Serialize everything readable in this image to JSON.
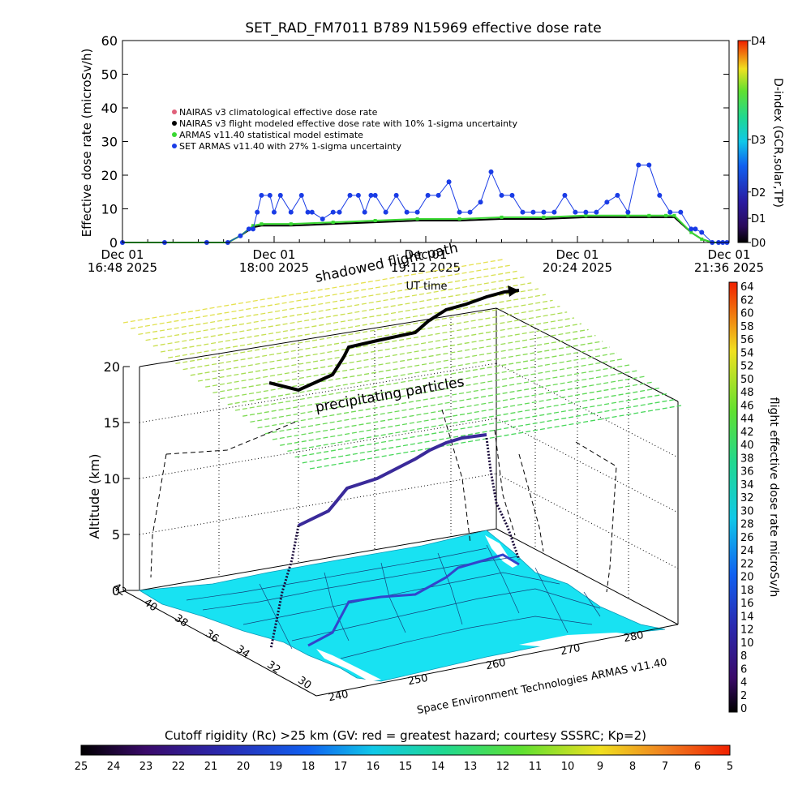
{
  "top_chart": {
    "title": "SET_RAD_FM7011   B789 N15969 effective dose rate",
    "ylabel": "Effective dose rate (microSv/h)",
    "ylim": [
      0,
      60
    ],
    "yticks": [
      "0",
      "10",
      "20",
      "30",
      "40",
      "50",
      "60"
    ],
    "xtick_labels": [
      {
        "line1": "Dec 01",
        "line2": "16:48 2025"
      },
      {
        "line1": "Dec 01",
        "line2": "18:00 2025"
      },
      {
        "line1": "Dec 01",
        "line2": "19:12 2025"
      },
      {
        "line1": "Dec 01",
        "line2": "20:24 2025"
      },
      {
        "line1": "Dec 01",
        "line2": "21:36 2025"
      }
    ],
    "xlabel": "UT time",
    "legend": [
      {
        "label": "NAIRAS v3 climatological effective dose rate",
        "color": "#e0607a"
      },
      {
        "label": "NAIRAS v3 flight modeled effective dose rate with 10% 1-sigma uncertainty",
        "color": "#000000"
      },
      {
        "label": "ARMAS v11.40 statistical model estimate",
        "color": "#39d832"
      },
      {
        "label": "SET ARMAS v11.40 with 27% 1-sigma uncertainty",
        "color": "#1a3ce6"
      }
    ],
    "dindex_label": "D-index (GCR,solar,TP)",
    "dindex_ticks": [
      "D4",
      "D3",
      "D2",
      "D1",
      "D0"
    ]
  },
  "chart_data": {
    "type": "line",
    "title": "SET_RAD_FM7011   B789 N15969 effective dose rate",
    "xlabel": "UT time",
    "ylabel": "Effective dose rate (microSv/h)",
    "x_units": "minutes since Dec 01 16:48 2025",
    "xlim": [
      0,
      288
    ],
    "ylim": [
      0,
      60
    ],
    "series": [
      {
        "name": "SET ARMAS v11.40 with 27% 1-sigma uncertainty",
        "color": "#1a3ce6",
        "x": [
          0,
          20,
          40,
          50,
          56,
          60,
          62,
          64,
          66,
          70,
          72,
          75,
          80,
          85,
          88,
          90,
          95,
          100,
          103,
          108,
          112,
          115,
          118,
          120,
          125,
          130,
          135,
          140,
          145,
          150,
          155,
          160,
          165,
          170,
          175,
          180,
          185,
          190,
          195,
          200,
          205,
          210,
          215,
          220,
          225,
          230,
          235,
          240,
          245,
          250,
          255,
          260,
          265,
          270,
          272,
          275,
          280,
          283,
          285,
          287
        ],
        "y": [
          0,
          0,
          0,
          0,
          2,
          4,
          4,
          9,
          14,
          14,
          9,
          14,
          9,
          14,
          9,
          9,
          7,
          9,
          9,
          14,
          14,
          9,
          14,
          14,
          9,
          14,
          9,
          9,
          14,
          14,
          18,
          9,
          9,
          12,
          21,
          14,
          14,
          9,
          9,
          9,
          9,
          14,
          9,
          9,
          9,
          12,
          14,
          9,
          23,
          23,
          14,
          9,
          9,
          4,
          4,
          3,
          0,
          0,
          0,
          0
        ]
      },
      {
        "name": "ARMAS v11.40 statistical model estimate",
        "color": "#39d832",
        "x": [
          0,
          40,
          50,
          56,
          62,
          66,
          80,
          100,
          120,
          140,
          160,
          180,
          200,
          220,
          240,
          250,
          258,
          262,
          270,
          275,
          280,
          287
        ],
        "y": [
          0,
          0,
          0,
          2,
          5,
          5.5,
          5.5,
          6,
          6.5,
          7,
          7,
          7.5,
          7.5,
          8,
          8,
          8,
          8,
          8,
          3,
          1,
          0,
          0
        ]
      },
      {
        "name": "NAIRAS v3 flight modeled effective dose rate with 10% 1-sigma uncertainty",
        "color": "#000000",
        "x": [
          0,
          40,
          50,
          56,
          62,
          66,
          80,
          100,
          120,
          140,
          160,
          180,
          200,
          220,
          240,
          250,
          258,
          262,
          270,
          275,
          280,
          287
        ],
        "y": [
          0,
          0,
          0,
          2,
          4.5,
          5,
          5,
          5.5,
          6,
          6.5,
          6.5,
          7,
          7,
          7.5,
          7.5,
          7.5,
          7.5,
          7.5,
          3,
          1,
          0,
          0
        ]
      }
    ]
  },
  "bottom_chart": {
    "ylabel": "Altitude (km)",
    "zticks": [
      "0",
      "5",
      "10",
      "15",
      "20"
    ],
    "lat_ticks": [
      "42",
      "40",
      "38",
      "36",
      "34",
      "32",
      "30"
    ],
    "lon_ticks": [
      "240",
      "250",
      "260",
      "270",
      "280"
    ],
    "annot_shadowed": "shadowed flight path",
    "annot_precip": "precipitating particles",
    "credit": "Space Environment Technologies ARMAS v11.40",
    "flight_colorbar_label": "flight effective dose rate microSv/h",
    "flight_colorbar_ticks": [
      "64",
      "62",
      "60",
      "58",
      "56",
      "54",
      "52",
      "50",
      "48",
      "46",
      "44",
      "42",
      "40",
      "38",
      "36",
      "34",
      "32",
      "30",
      "28",
      "26",
      "24",
      "22",
      "20",
      "18",
      "16",
      "14",
      "12",
      "10",
      "8",
      "6",
      "4",
      "2",
      "0"
    ],
    "cutoff_label": "Cutoff rigidity (Rc) >25 km (GV: red = greatest hazard; courtesy SSSRC; Kp=2)",
    "cutoff_ticks": [
      "25",
      "24",
      "23",
      "22",
      "21",
      "20",
      "19",
      "18",
      "17",
      "16",
      "15",
      "14",
      "13",
      "12",
      "11",
      "10",
      "9",
      "8",
      "7",
      "6",
      "5"
    ],
    "colors": {
      "map_fill": "#18e2f2",
      "flight_path": "#3a2a9a",
      "shadow_path": "#000000"
    }
  }
}
